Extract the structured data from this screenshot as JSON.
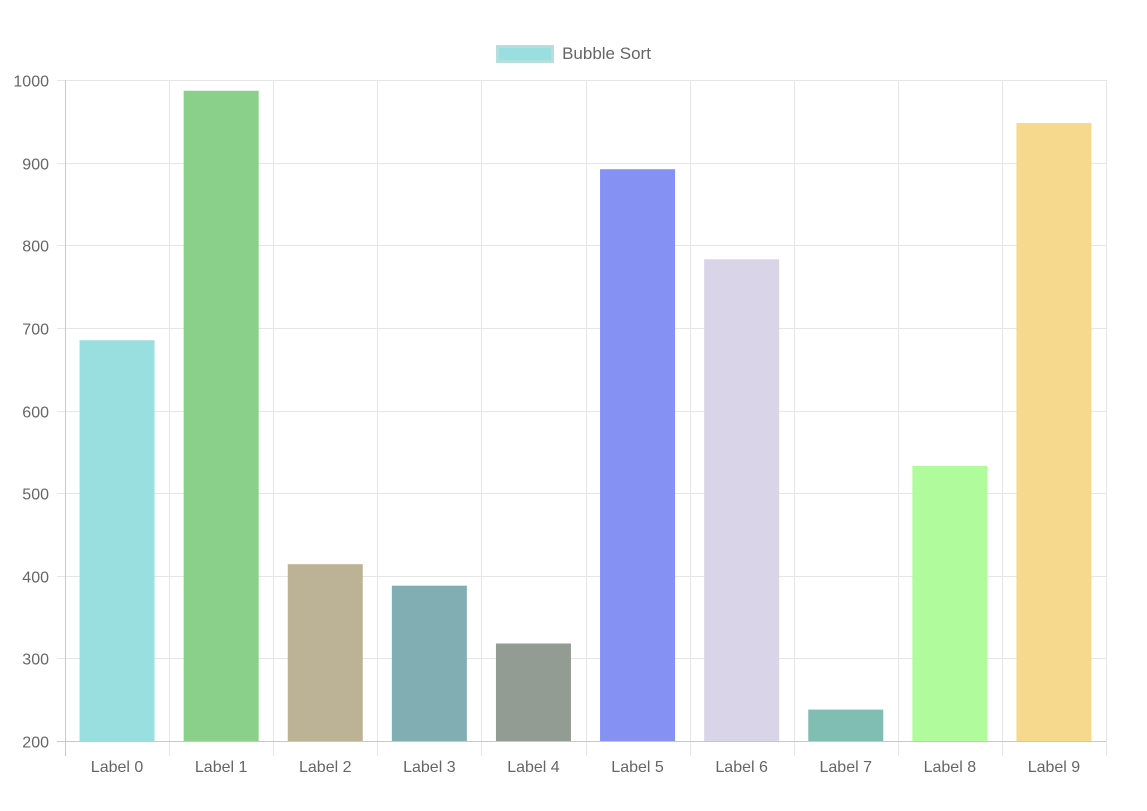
{
  "legend": {
    "label": "Bubble Sort",
    "swatch_color": "#9adfdf"
  },
  "chart_data": {
    "type": "bar",
    "categories": [
      "Label 0",
      "Label 1",
      "Label 2",
      "Label 3",
      "Label 4",
      "Label 5",
      "Label 6",
      "Label 7",
      "Label 8",
      "Label 9"
    ],
    "series": [
      {
        "name": "Bubble Sort",
        "values": [
          685,
          987,
          414,
          388,
          318,
          892,
          783,
          238,
          533,
          948
        ]
      }
    ],
    "colors": [
      "#9adfdf",
      "#8ad08a",
      "#bcb396",
      "#80aeb3",
      "#929c92",
      "#8591f3",
      "#d9d4e8",
      "#80bdb3",
      "#b0fb9b",
      "#f6d98c"
    ],
    "ylim": [
      200,
      1000
    ],
    "yticks": [
      200,
      300,
      400,
      500,
      600,
      700,
      800,
      900,
      1000
    ],
    "grid": true,
    "legend_position": "top"
  }
}
